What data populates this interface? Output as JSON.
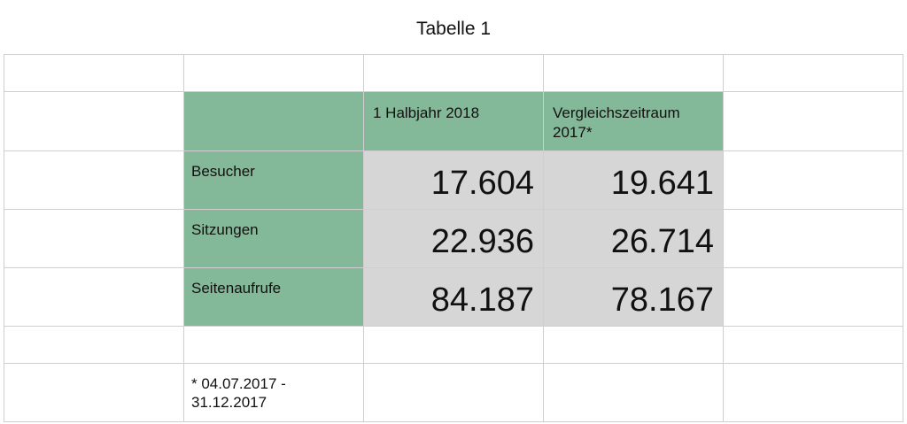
{
  "title": "Tabelle 1",
  "header": {
    "col1": "1 Halbjahr 2018",
    "col2": "Vergleichszeitraum 2017*"
  },
  "rows": [
    {
      "label": "Besucher",
      "v2018": "17.604",
      "v2017": "19.641"
    },
    {
      "label": "Sitzungen",
      "v2018": "22.936",
      "v2017": "26.714"
    },
    {
      "label": "Seitenaufrufe",
      "v2018": "84.187",
      "v2017": "78.167"
    }
  ],
  "footnote": "* 04.07.2017 - 31.12.2017",
  "colors": {
    "header_green": "#83b898",
    "value_gray": "#d6d6d6",
    "grid": "#cfcfcf"
  }
}
